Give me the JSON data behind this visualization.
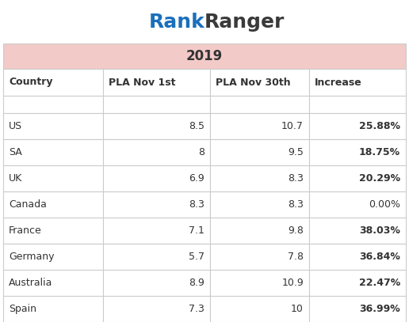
{
  "title_logo_blue": "Rank",
  "title_logo_dark": "Ranger",
  "year_header": "2019",
  "year_header_bg": "#f2cac8",
  "columns": [
    "Country",
    "PLA Nov 1st",
    "PLA Nov 30th",
    "Increase"
  ],
  "rows": [
    [
      "US",
      "8.5",
      "10.7",
      "25.88%"
    ],
    [
      "SA",
      "8",
      "9.5",
      "18.75%"
    ],
    [
      "UK",
      "6.9",
      "8.3",
      "20.29%"
    ],
    [
      "Canada",
      "8.3",
      "8.3",
      "0.00%"
    ],
    [
      "France",
      "7.1",
      "9.8",
      "38.03%"
    ],
    [
      "Germany",
      "5.7",
      "7.8",
      "36.84%"
    ],
    [
      "Australia",
      "8.9",
      "10.9",
      "22.47%"
    ],
    [
      "Spain",
      "7.3",
      "10",
      "36.99%"
    ]
  ],
  "increase_bold": [
    true,
    true,
    true,
    false,
    true,
    true,
    true,
    true
  ],
  "logo_color_rank": "#1a6fbb",
  "logo_color_ranger": "#3a3a3a",
  "text_color": "#333333",
  "table_bg": "#ffffff",
  "border_color": "#cccccc"
}
